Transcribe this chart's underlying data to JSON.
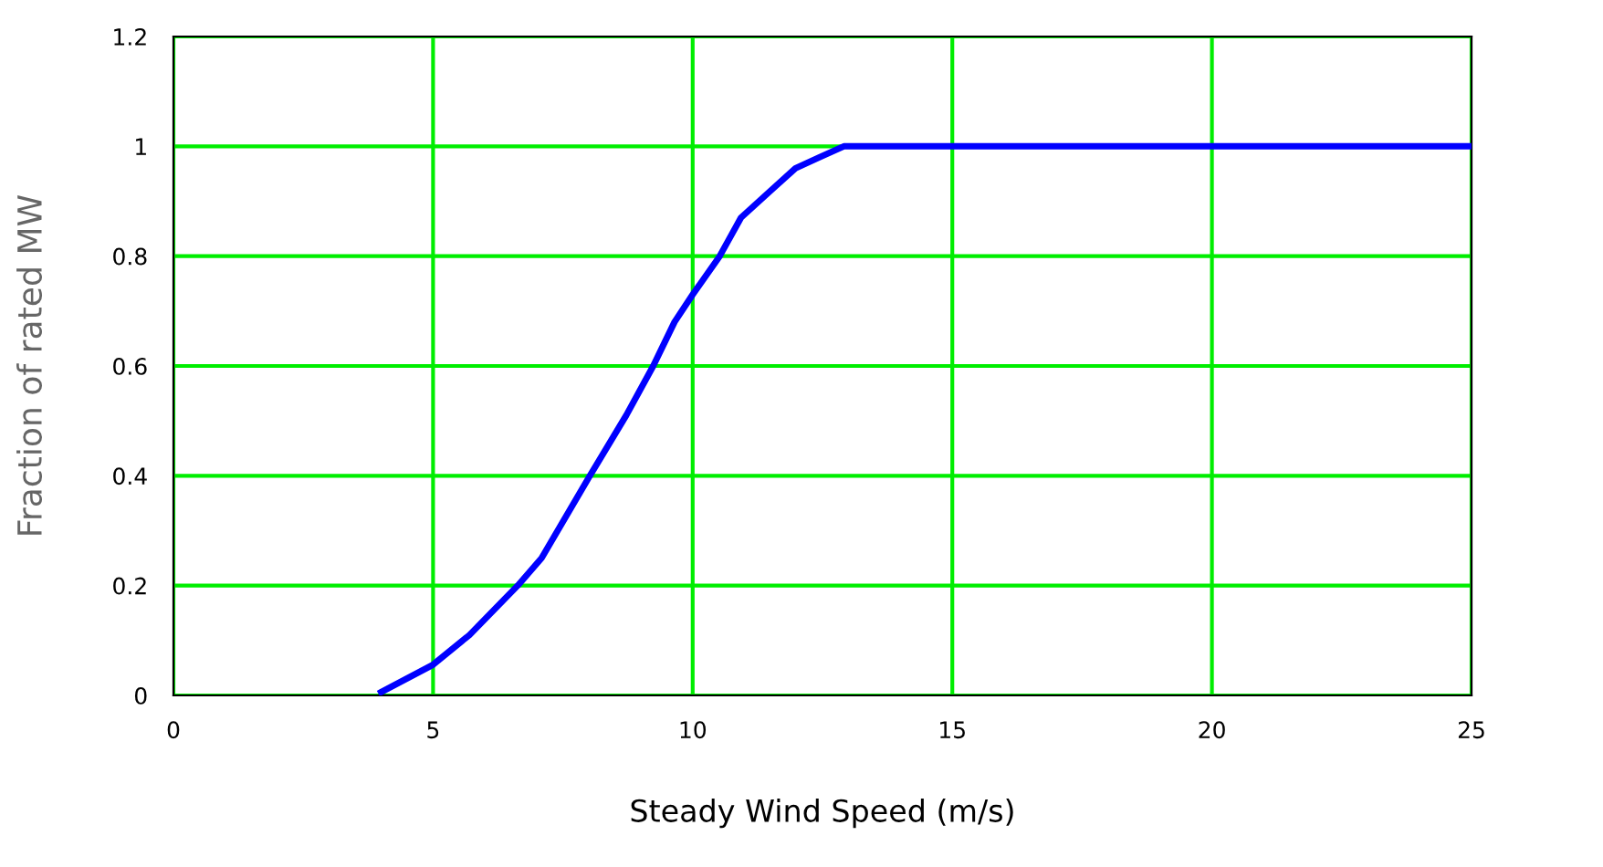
{
  "chart_data": {
    "type": "line",
    "xlabel": "Steady Wind Speed (m/s)",
    "ylabel": "Fraction of rated MW",
    "x": [
      4.0,
      5.0,
      5.7,
      6.63,
      7.09,
      8.02,
      8.72,
      9.24,
      9.65,
      10.0,
      10.52,
      10.93,
      11.51,
      11.98,
      12.44,
      12.91,
      25
    ],
    "series": [
      {
        "color": "#0000ff",
        "values": [
          0.006,
          0.056,
          0.11,
          0.2,
          0.25,
          0.4,
          0.51,
          0.6,
          0.68,
          0.73,
          0.8,
          0.87,
          0.92,
          0.96,
          0.98,
          1.0,
          1.0
        ]
      }
    ],
    "xlim": [
      0,
      25
    ],
    "xticks": [
      0,
      5,
      10,
      15,
      20,
      25
    ],
    "ylim": [
      0,
      1.2
    ],
    "yticks": [
      0,
      0.2,
      0.4,
      0.6,
      0.8,
      1,
      1.2
    ],
    "grid": true,
    "line_style": "solid",
    "marker": "none"
  }
}
